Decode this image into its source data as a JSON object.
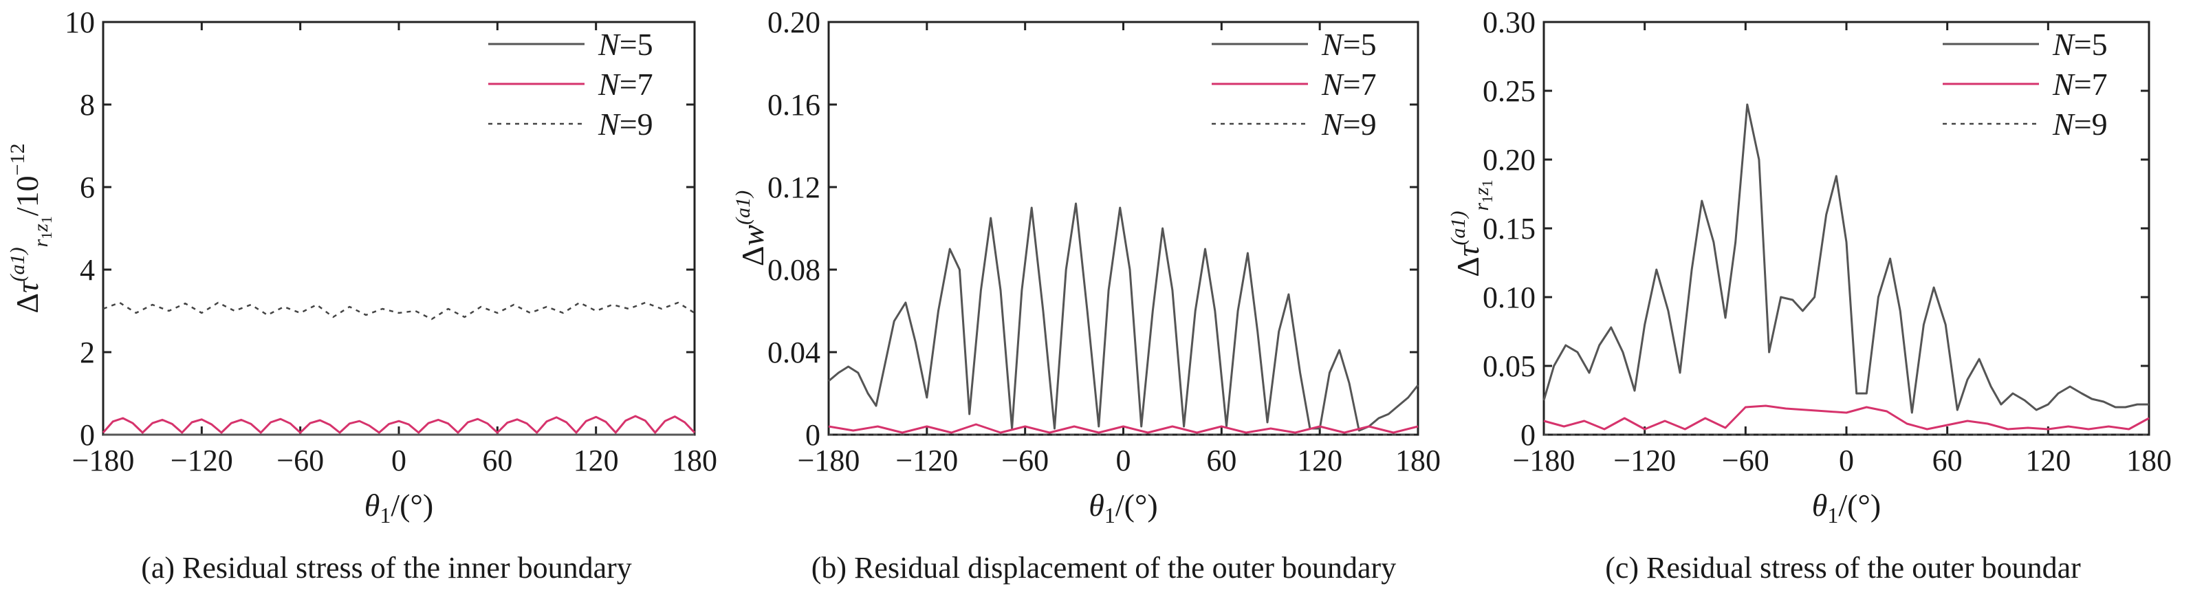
{
  "chart_data": [
    {
      "type": "line",
      "caption": "(a) Residual stress of the inner boundary",
      "xlabel": "θ1/(°)",
      "ylabel": "Δτ(a1)r1z1/10−12",
      "xlim": [
        -180,
        180
      ],
      "ylim": [
        0,
        10
      ],
      "xticks": [
        "-180",
        "-120",
        "-60",
        "0",
        "60",
        "120",
        "180"
      ],
      "yticks": [
        "0",
        "2",
        "4",
        "6",
        "8",
        "10"
      ],
      "legend_position": "top-right",
      "series": [
        {
          "name": "N=5",
          "color": "#555555",
          "style": "solid",
          "x": [
            -180,
            180
          ],
          "y": [
            0,
            0
          ]
        },
        {
          "name": "N=7",
          "color": "#d6336c",
          "style": "solid",
          "x": [
            -180,
            -174,
            -168,
            -162,
            -156,
            -150,
            -144,
            -138,
            -132,
            -126,
            -120,
            -114,
            -108,
            -102,
            -96,
            -90,
            -84,
            -78,
            -72,
            -66,
            -60,
            -54,
            -48,
            -42,
            -36,
            -30,
            -24,
            -18,
            -12,
            -6,
            0,
            6,
            12,
            18,
            24,
            30,
            36,
            42,
            48,
            54,
            60,
            66,
            72,
            78,
            84,
            90,
            96,
            102,
            108,
            114,
            120,
            126,
            132,
            138,
            144,
            150,
            156,
            162,
            168,
            174,
            180
          ],
          "y": [
            0.05,
            0.32,
            0.4,
            0.28,
            0.05,
            0.28,
            0.36,
            0.26,
            0.05,
            0.3,
            0.37,
            0.25,
            0.05,
            0.28,
            0.36,
            0.26,
            0.05,
            0.3,
            0.38,
            0.27,
            0.05,
            0.28,
            0.35,
            0.24,
            0.05,
            0.27,
            0.33,
            0.22,
            0.05,
            0.26,
            0.33,
            0.25,
            0.05,
            0.28,
            0.36,
            0.27,
            0.05,
            0.3,
            0.38,
            0.27,
            0.05,
            0.29,
            0.37,
            0.27,
            0.05,
            0.32,
            0.42,
            0.3,
            0.05,
            0.33,
            0.43,
            0.31,
            0.05,
            0.34,
            0.45,
            0.34,
            0.05,
            0.33,
            0.44,
            0.3,
            0.05
          ]
        },
        {
          "name": "N=9",
          "color": "#444444",
          "style": "dotted",
          "x": [
            -180,
            -170,
            -160,
            -150,
            -140,
            -130,
            -120,
            -110,
            -100,
            -90,
            -80,
            -70,
            -60,
            -50,
            -40,
            -30,
            -20,
            -10,
            0,
            10,
            20,
            30,
            40,
            50,
            60,
            70,
            80,
            90,
            100,
            110,
            120,
            130,
            140,
            150,
            160,
            170,
            180
          ],
          "y": [
            3.05,
            3.2,
            2.95,
            3.15,
            3.0,
            3.18,
            2.95,
            3.2,
            3.0,
            3.15,
            2.9,
            3.1,
            2.95,
            3.15,
            2.85,
            3.1,
            2.9,
            3.05,
            2.95,
            3.0,
            2.8,
            3.05,
            2.85,
            3.1,
            2.95,
            3.15,
            2.95,
            3.1,
            2.95,
            3.2,
            3.0,
            3.15,
            3.05,
            3.2,
            3.05,
            3.2,
            2.95
          ]
        }
      ]
    },
    {
      "type": "line",
      "caption": "(b) Residual displacement of the outer boundary",
      "xlabel": "θ1/(°)",
      "ylabel": "Δw(a1)",
      "xlim": [
        -180,
        180
      ],
      "ylim": [
        0,
        0.2
      ],
      "xticks": [
        "-180",
        "-120",
        "-60",
        "0",
        "60",
        "120",
        "180"
      ],
      "yticks": [
        "0",
        "0.04",
        "0.08",
        "0.12",
        "0.16",
        "0.20"
      ],
      "legend_position": "top-right",
      "series": [
        {
          "name": "N=5",
          "color": "#555555",
          "style": "solid",
          "x": [
            -180,
            -174,
            -168,
            -162,
            -156,
            -151,
            -140,
            -133,
            -127,
            -120,
            -113,
            -106,
            -100,
            -94,
            -87,
            -81,
            -75,
            -68,
            -62,
            -56,
            -49,
            -42,
            -35,
            -29,
            -22,
            -15,
            -9,
            -2,
            4,
            11,
            18,
            24,
            30,
            37,
            44,
            50,
            56,
            63,
            70,
            76,
            82,
            88,
            95,
            101,
            108,
            114,
            120,
            126,
            132,
            138,
            144,
            150,
            156,
            162,
            168,
            174,
            180
          ],
          "y": [
            0.026,
            0.03,
            0.033,
            0.03,
            0.02,
            0.014,
            0.055,
            0.064,
            0.045,
            0.018,
            0.06,
            0.09,
            0.08,
            0.01,
            0.07,
            0.105,
            0.07,
            0.003,
            0.07,
            0.11,
            0.06,
            0.003,
            0.08,
            0.112,
            0.06,
            0.004,
            0.07,
            0.11,
            0.08,
            0.004,
            0.06,
            0.1,
            0.07,
            0.004,
            0.06,
            0.09,
            0.06,
            0.004,
            0.06,
            0.088,
            0.05,
            0.006,
            0.05,
            0.068,
            0.03,
            0.003,
            0.003,
            0.03,
            0.041,
            0.025,
            0.002,
            0.004,
            0.008,
            0.01,
            0.014,
            0.018,
            0.024
          ]
        },
        {
          "name": "N=7",
          "color": "#d6336c",
          "style": "solid",
          "x": [
            -180,
            -165,
            -150,
            -135,
            -120,
            -105,
            -90,
            -75,
            -60,
            -45,
            -30,
            -15,
            0,
            15,
            30,
            45,
            60,
            75,
            90,
            105,
            120,
            135,
            150,
            165,
            180
          ],
          "y": [
            0.004,
            0.002,
            0.004,
            0.001,
            0.004,
            0.001,
            0.005,
            0.001,
            0.004,
            0.001,
            0.004,
            0.001,
            0.004,
            0.001,
            0.004,
            0.001,
            0.004,
            0.001,
            0.003,
            0.001,
            0.004,
            0.001,
            0.004,
            0.001,
            0.004
          ]
        },
        {
          "name": "N=9",
          "color": "#444444",
          "style": "dotted",
          "x": [
            -180,
            180
          ],
          "y": [
            0,
            0
          ]
        }
      ]
    },
    {
      "type": "line",
      "caption": "(c) Residual stress of the outer boundar",
      "xlabel": "θ1/(°)",
      "ylabel": "Δτ(a1)r1z1",
      "xlim": [
        -180,
        180
      ],
      "ylim": [
        0,
        0.3
      ],
      "xticks": [
        "-180",
        "-120",
        "-60",
        "0",
        "60",
        "120",
        "180"
      ],
      "yticks": [
        "0",
        "0.05",
        "0.10",
        "0.15",
        "0.20",
        "0.25",
        "0.30"
      ],
      "legend_position": "top-right",
      "series": [
        {
          "name": "N=5",
          "color": "#555555",
          "style": "solid",
          "x": [
            -180,
            -174,
            -167,
            -160,
            -153,
            -147,
            -140,
            -133,
            -126,
            -120,
            -113,
            -106,
            -99,
            -92,
            -86,
            -79,
            -72,
            -66,
            -59,
            -52,
            -46,
            -39,
            -32,
            -26,
            -19,
            -12,
            -6,
            0,
            6,
            12,
            19,
            26,
            32,
            39,
            46,
            52,
            59,
            66,
            72,
            79,
            86,
            92,
            99,
            106,
            113,
            120,
            126,
            133,
            140,
            146,
            153,
            160,
            166,
            173,
            180
          ],
          "y": [
            0.025,
            0.05,
            0.065,
            0.06,
            0.045,
            0.065,
            0.078,
            0.06,
            0.032,
            0.08,
            0.12,
            0.09,
            0.045,
            0.12,
            0.17,
            0.14,
            0.085,
            0.14,
            0.24,
            0.2,
            0.06,
            0.1,
            0.098,
            0.09,
            0.1,
            0.16,
            0.188,
            0.14,
            0.03,
            0.03,
            0.1,
            0.128,
            0.09,
            0.016,
            0.08,
            0.107,
            0.08,
            0.018,
            0.04,
            0.055,
            0.035,
            0.022,
            0.03,
            0.025,
            0.018,
            0.022,
            0.03,
            0.035,
            0.03,
            0.026,
            0.024,
            0.02,
            0.02,
            0.022,
            0.022
          ]
        },
        {
          "name": "N=7",
          "color": "#d6336c",
          "style": "solid",
          "x": [
            -180,
            -168,
            -156,
            -144,
            -132,
            -120,
            -108,
            -96,
            -84,
            -72,
            -60,
            -48,
            -36,
            -24,
            -12,
            0,
            12,
            24,
            36,
            48,
            60,
            72,
            84,
            96,
            108,
            120,
            132,
            144,
            156,
            168,
            180
          ],
          "y": [
            0.01,
            0.006,
            0.01,
            0.004,
            0.012,
            0.004,
            0.01,
            0.004,
            0.012,
            0.005,
            0.02,
            0.021,
            0.019,
            0.018,
            0.017,
            0.016,
            0.02,
            0.017,
            0.008,
            0.004,
            0.007,
            0.01,
            0.008,
            0.004,
            0.005,
            0.004,
            0.006,
            0.004,
            0.006,
            0.004,
            0.012
          ]
        },
        {
          "name": "N=9",
          "color": "#444444",
          "style": "dotted",
          "x": [
            -180,
            180
          ],
          "y": [
            0,
            0
          ]
        }
      ]
    }
  ],
  "panels": [
    {
      "caption": "(a) Residual stress of the inner boundary",
      "xlabel": "θ1/(°)",
      "ylabel": "Δτ(a1)r1z1/10−12"
    },
    {
      "caption": "(b) Residual displacement of the outer boundary",
      "xlabel": "θ1/(°)",
      "ylabel": "Δw(a1)"
    },
    {
      "caption": "(c) Residual stress of the outer boundar",
      "xlabel": "θ1/(°)",
      "ylabel": "Δτ(a1)r1z1"
    }
  ]
}
